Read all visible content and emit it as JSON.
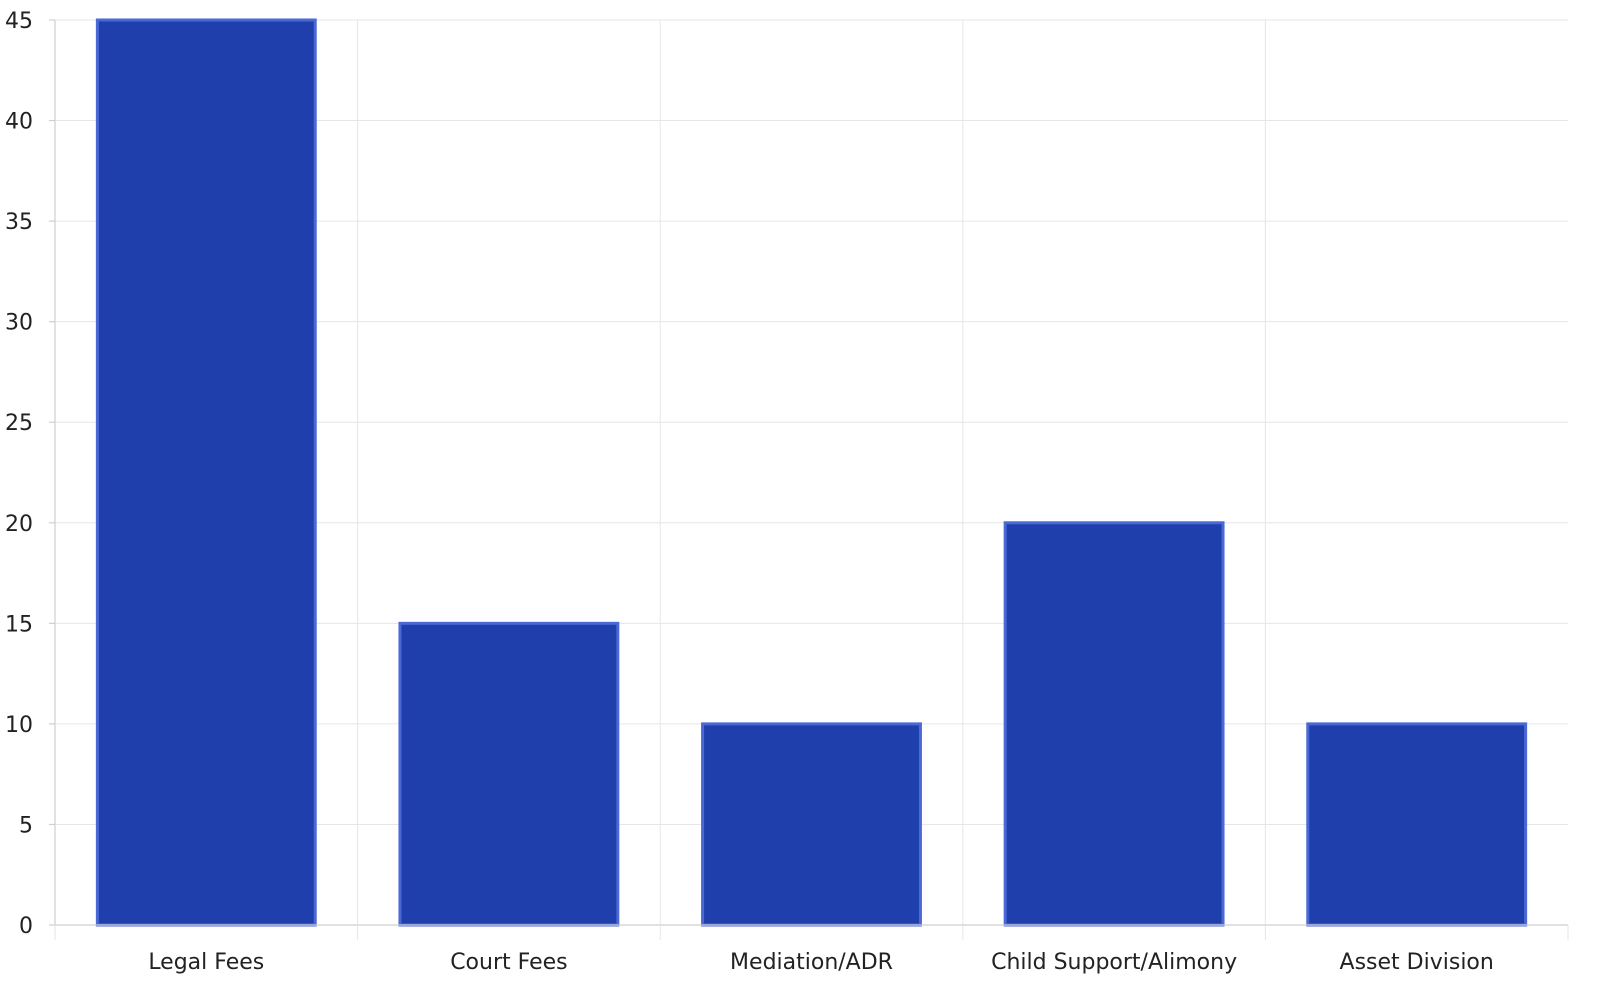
{
  "chart_data": {
    "type": "bar",
    "categories": [
      "Legal Fees",
      "Court Fees",
      "Mediation/ADR",
      "Child Support/Alimony",
      "Asset Division"
    ],
    "values": [
      45,
      15,
      10,
      20,
      10
    ],
    "ylim": [
      0,
      45
    ],
    "yticks": [
      0,
      5,
      10,
      15,
      20,
      25,
      30,
      35,
      40,
      45
    ],
    "grid": true,
    "bar_color": "#1f3fac",
    "bar_edge_color": "#4a68d6"
  }
}
